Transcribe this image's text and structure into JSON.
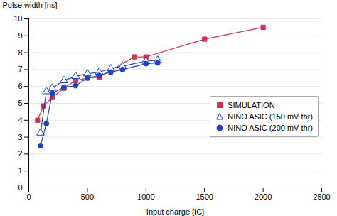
{
  "chart_data": {
    "type": "line",
    "xlabel": "Input charge [IC]",
    "ylabel": "Pulse width [ns]",
    "xlim": [
      0,
      2500
    ],
    "ylim": [
      0,
      10
    ],
    "xticks": [
      0,
      500,
      1000,
      1500,
      2000,
      2500
    ],
    "yticks": [
      0,
      1,
      2,
      3,
      4,
      5,
      6,
      7,
      8,
      9,
      10
    ],
    "grid": "y",
    "legend": "right",
    "series": [
      {
        "name": "SIMULATION",
        "color": "#cc3355",
        "marker": "square",
        "x": [
          75,
          125,
          200,
          300,
          400,
          500,
          600,
          700,
          900,
          1000,
          1500,
          2000
        ],
        "values": [
          4.0,
          4.85,
          5.35,
          5.9,
          6.35,
          6.5,
          6.55,
          6.95,
          7.75,
          7.75,
          8.8,
          9.5
        ]
      },
      {
        "name": "NINO ASIC (150 mV thr)",
        "color": "#2244bb",
        "marker": "triangle",
        "x": [
          100,
          150,
          200,
          300,
          400,
          500,
          600,
          700,
          800,
          1000,
          1100
        ],
        "values": [
          3.25,
          5.7,
          5.9,
          6.35,
          6.6,
          6.75,
          6.85,
          7.05,
          7.2,
          7.5,
          7.55
        ]
      },
      {
        "name": "NINO ASIC (200 mV thr)",
        "color": "#2244bb",
        "marker": "circle",
        "x": [
          100,
          150,
          200,
          300,
          400,
          500,
          600,
          700,
          800,
          1000,
          1100
        ],
        "values": [
          2.5,
          3.8,
          5.6,
          5.95,
          6.05,
          6.5,
          6.65,
          6.85,
          7.0,
          7.35,
          7.4
        ]
      }
    ]
  }
}
